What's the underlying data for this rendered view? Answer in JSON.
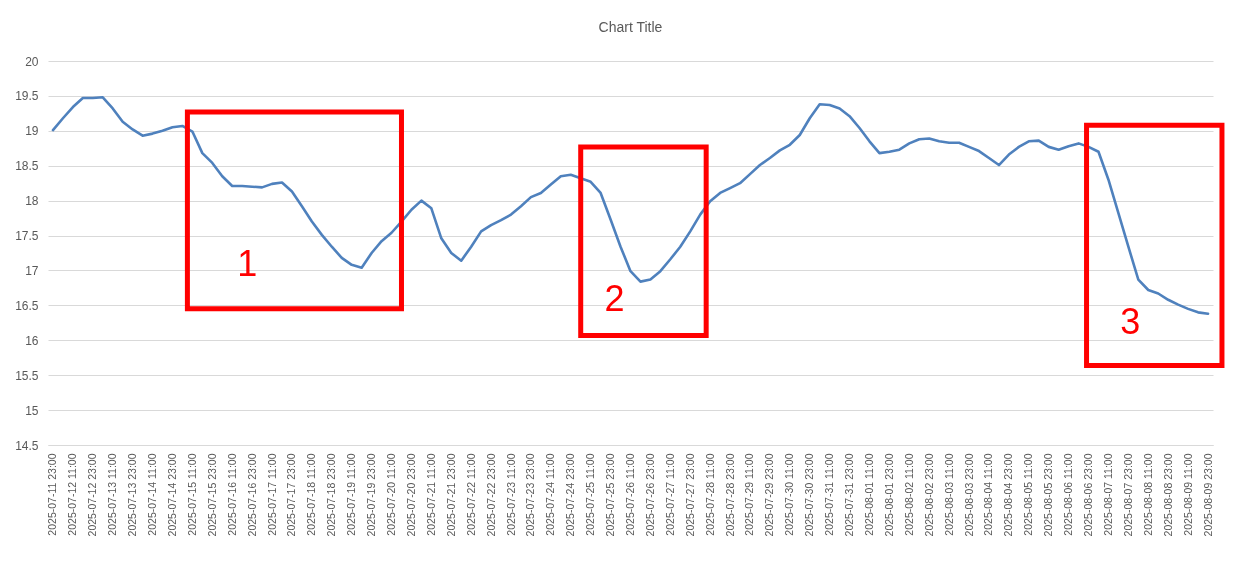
{
  "chart_data": {
    "type": "line",
    "title": "Chart Title",
    "categories": [
      "2025-07-11 23:00",
      null,
      "2025-07-12 11:00",
      null,
      "2025-07-12 23:00",
      null,
      "2025-07-13 11:00",
      null,
      "2025-07-13 23:00",
      null,
      "2025-07-14 11:00",
      null,
      "2025-07-14 23:00",
      null,
      "2025-07-15 11:00",
      null,
      "2025-07-15 23:00",
      null,
      "2025-07-16 11:00",
      null,
      "2025-07-16 23:00",
      null,
      "2025-07-17 11:00",
      null,
      "2025-07-17 23:00",
      null,
      "2025-07-18 11:00",
      null,
      "2025-07-18 23:00",
      null,
      "2025-07-19 11:00",
      null,
      "2025-07-19 23:00",
      null,
      "2025-07-20 11:00",
      null,
      "2025-07-20 23:00",
      null,
      "2025-07-21 11:00",
      null,
      "2025-07-21 23:00",
      null,
      "2025-07-22 11:00",
      null,
      "2025-07-22 23:00",
      null,
      "2025-07-23 11:00",
      null,
      "2025-07-23 23:00",
      null,
      "2025-07-24 11:00",
      null,
      "2025-07-24 23:00",
      null,
      "2025-07-25 11:00",
      null,
      "2025-07-25 23:00",
      null,
      "2025-07-26 11:00",
      null,
      "2025-07-26 23:00",
      null,
      "2025-07-27 11:00",
      null,
      "2025-07-27 23:00",
      null,
      "2025-07-28 11:00",
      null,
      "2025-07-28 23:00",
      null,
      "2025-07-29 11:00",
      null,
      "2025-07-29 23:00",
      null,
      "2025-07-30 11:00",
      null,
      "2025-07-30 23:00",
      null,
      "2025-07-31 11:00",
      null,
      "2025-07-31 23:00",
      null,
      "2025-08-01 11:00",
      null,
      "2025-08-01 23:00",
      null,
      "2025-08-02 11:00",
      null,
      "2025-08-02 23:00",
      null,
      "2025-08-03 11:00",
      null,
      "2025-08-03 23:00",
      null,
      "2025-08-04 11:00",
      null,
      "2025-08-04 23:00",
      null,
      "2025-08-05 11:00",
      null,
      "2025-08-05 23:00",
      null,
      "2025-08-06 11:00",
      null,
      "2025-08-06 23:00",
      null,
      "2025-08-07 11:00",
      null,
      "2025-08-07 23:00",
      null,
      "2025-08-08 11:00",
      null,
      "2025-08-08 23:00",
      null,
      "2025-08-09 11:00",
      null,
      "2025-08-09 23:00"
    ],
    "series": [
      {
        "color": "#4f81bd",
        "values": [
          19.01,
          19.18,
          19.34,
          19.47,
          19.47,
          19.48,
          19.32,
          19.13,
          19.02,
          18.93,
          18.96,
          19.0,
          19.05,
          19.07,
          18.99,
          18.68,
          18.54,
          18.35,
          18.21,
          18.21,
          18.2,
          18.19,
          18.24,
          18.26,
          18.13,
          17.92,
          17.7,
          17.51,
          17.34,
          17.18,
          17.08,
          17.04,
          17.25,
          17.42,
          17.54,
          17.7,
          17.87,
          18.0,
          17.89,
          17.46,
          17.25,
          17.14,
          17.34,
          17.56,
          17.65,
          17.72,
          17.8,
          17.92,
          18.05,
          18.11,
          18.23,
          18.35,
          18.37,
          18.32,
          18.27,
          18.11,
          17.73,
          17.34,
          16.99,
          16.84,
          16.87,
          16.99,
          17.16,
          17.34,
          17.56,
          17.8,
          17.99,
          18.11,
          18.18,
          18.25,
          18.38,
          18.51,
          18.61,
          18.72,
          18.8,
          18.94,
          19.18,
          19.38,
          19.37,
          19.32,
          19.21,
          19.04,
          18.85,
          18.68,
          18.7,
          18.73,
          18.82,
          18.88,
          18.89,
          18.85,
          18.83,
          18.83,
          18.77,
          18.71,
          18.61,
          18.51,
          18.66,
          18.77,
          18.85,
          18.86,
          18.77,
          18.73,
          18.78,
          18.82,
          18.77,
          18.7,
          18.3,
          17.82,
          17.34,
          16.87,
          16.72,
          16.67,
          16.58,
          16.51,
          16.45,
          16.4,
          16.38
        ]
      }
    ],
    "ylim": [
      14.5,
      20
    ],
    "yticks": [
      14.5,
      15,
      15.5,
      16,
      16.5,
      17,
      17.5,
      18,
      18.5,
      19,
      19.5,
      20
    ],
    "grid": "y",
    "marker": "none",
    "line_style": "solid",
    "annotations": [
      "1",
      "2",
      "3"
    ]
  }
}
